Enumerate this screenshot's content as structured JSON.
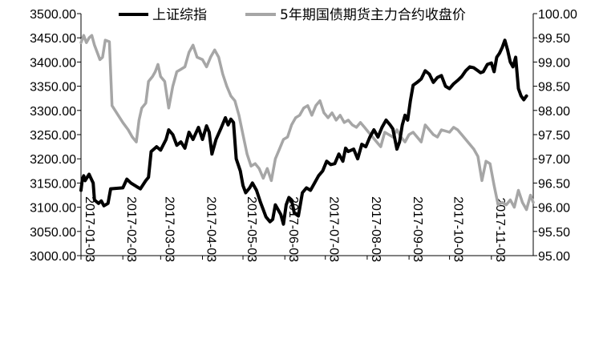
{
  "chart_data": {
    "type": "line",
    "title": "",
    "xlabel": "",
    "ylabel": "",
    "legend_position": "top-center",
    "x_tick_labels": [
      "2017-01-03",
      "2017-02-03",
      "2017-03-03",
      "2017-04-03",
      "2017-05-03",
      "2017-06-03",
      "2017-07-03",
      "2017-08-03",
      "2017-09-03",
      "2017-10-03",
      "2017-11-03"
    ],
    "x_range": [
      "2017-01-03",
      "2017-12-04"
    ],
    "left_axis": {
      "min": 3000,
      "max": 3500,
      "step": 50,
      "tick_labels": [
        "3000.00",
        "3050.00",
        "3100.00",
        "3150.00",
        "3200.00",
        "3250.00",
        "3300.00",
        "3350.00",
        "3400.00",
        "3450.00",
        "3500.00"
      ]
    },
    "right_axis": {
      "min": 95,
      "max": 100,
      "step": 0.5,
      "tick_labels": [
        "95.00",
        "95.50",
        "96.00",
        "96.50",
        "97.00",
        "97.50",
        "98.00",
        "98.50",
        "99.00",
        "99.50",
        "100.00"
      ]
    },
    "series": [
      {
        "name": "上证综指",
        "axis": "left",
        "color": "#000000",
        "points": [
          [
            "2017-01-03",
            3135
          ],
          [
            "2017-01-04",
            3158
          ],
          [
            "2017-01-05",
            3165
          ],
          [
            "2017-01-06",
            3155
          ],
          [
            "2017-01-09",
            3168
          ],
          [
            "2017-01-10",
            3162
          ],
          [
            "2017-01-12",
            3150
          ],
          [
            "2017-01-13",
            3115
          ],
          [
            "2017-01-16",
            3108
          ],
          [
            "2017-01-18",
            3113
          ],
          [
            "2017-01-20",
            3103
          ],
          [
            "2017-01-23",
            3108
          ],
          [
            "2017-01-25",
            3138
          ],
          [
            "2017-02-03",
            3140
          ],
          [
            "2017-02-06",
            3158
          ],
          [
            "2017-02-09",
            3150
          ],
          [
            "2017-02-13",
            3143
          ],
          [
            "2017-02-16",
            3138
          ],
          [
            "2017-02-20",
            3155
          ],
          [
            "2017-02-22",
            3162
          ],
          [
            "2017-02-24",
            3215
          ],
          [
            "2017-02-28",
            3225
          ],
          [
            "2017-03-03",
            3218
          ],
          [
            "2017-03-07",
            3240
          ],
          [
            "2017-03-09",
            3260
          ],
          [
            "2017-03-12",
            3250
          ],
          [
            "2017-03-15",
            3228
          ],
          [
            "2017-03-18",
            3235
          ],
          [
            "2017-03-21",
            3222
          ],
          [
            "2017-03-24",
            3255
          ],
          [
            "2017-03-27",
            3240
          ],
          [
            "2017-03-31",
            3265
          ],
          [
            "2017-04-03",
            3240
          ],
          [
            "2017-04-06",
            3268
          ],
          [
            "2017-04-08",
            3255
          ],
          [
            "2017-04-10",
            3210
          ],
          [
            "2017-04-13",
            3240
          ],
          [
            "2017-04-17",
            3265
          ],
          [
            "2017-04-20",
            3285
          ],
          [
            "2017-04-22",
            3270
          ],
          [
            "2017-04-24",
            3282
          ],
          [
            "2017-04-26",
            3275
          ],
          [
            "2017-04-28",
            3200
          ],
          [
            "2017-05-01",
            3175
          ],
          [
            "2017-05-03",
            3145
          ],
          [
            "2017-05-05",
            3130
          ],
          [
            "2017-05-08",
            3140
          ],
          [
            "2017-05-10",
            3150
          ],
          [
            "2017-05-13",
            3135
          ],
          [
            "2017-05-16",
            3110
          ],
          [
            "2017-05-18",
            3095
          ],
          [
            "2017-05-20",
            3080
          ],
          [
            "2017-05-23",
            3070
          ],
          [
            "2017-05-25",
            3075
          ],
          [
            "2017-05-27",
            3105
          ],
          [
            "2017-05-29",
            3095
          ],
          [
            "2017-05-31",
            3085
          ],
          [
            "2017-06-02",
            3065
          ],
          [
            "2017-06-04",
            3105
          ],
          [
            "2017-06-06",
            3120
          ],
          [
            "2017-06-08",
            3115
          ],
          [
            "2017-06-10",
            3088
          ],
          [
            "2017-06-13",
            3082
          ],
          [
            "2017-06-16",
            3130
          ],
          [
            "2017-06-19",
            3140
          ],
          [
            "2017-06-22",
            3135
          ],
          [
            "2017-06-25",
            3150
          ],
          [
            "2017-06-28",
            3165
          ],
          [
            "2017-07-01",
            3175
          ],
          [
            "2017-07-04",
            3195
          ],
          [
            "2017-07-07",
            3188
          ],
          [
            "2017-07-10",
            3190
          ],
          [
            "2017-07-13",
            3210
          ],
          [
            "2017-07-16",
            3195
          ],
          [
            "2017-07-18",
            3222
          ],
          [
            "2017-07-20",
            3215
          ],
          [
            "2017-07-24",
            3220
          ],
          [
            "2017-07-27",
            3200
          ],
          [
            "2017-07-30",
            3230
          ],
          [
            "2017-08-02",
            3225
          ],
          [
            "2017-08-05",
            3245
          ],
          [
            "2017-08-08",
            3260
          ],
          [
            "2017-08-11",
            3245
          ],
          [
            "2017-08-14",
            3265
          ],
          [
            "2017-08-17",
            3280
          ],
          [
            "2017-08-20",
            3270
          ],
          [
            "2017-08-22",
            3262
          ],
          [
            "2017-08-25",
            3220
          ],
          [
            "2017-08-27",
            3235
          ],
          [
            "2017-08-29",
            3270
          ],
          [
            "2017-08-31",
            3290
          ],
          [
            "2017-09-02",
            3280
          ],
          [
            "2017-09-04",
            3320
          ],
          [
            "2017-09-06",
            3352
          ],
          [
            "2017-09-09",
            3358
          ],
          [
            "2017-09-12",
            3365
          ],
          [
            "2017-09-15",
            3382
          ],
          [
            "2017-09-18",
            3375
          ],
          [
            "2017-09-21",
            3358
          ],
          [
            "2017-09-24",
            3368
          ],
          [
            "2017-09-27",
            3372
          ],
          [
            "2017-09-30",
            3350
          ],
          [
            "2017-10-03",
            3345
          ],
          [
            "2017-10-06",
            3355
          ],
          [
            "2017-10-09",
            3362
          ],
          [
            "2017-10-12",
            3370
          ],
          [
            "2017-10-15",
            3382
          ],
          [
            "2017-10-18",
            3390
          ],
          [
            "2017-10-21",
            3388
          ],
          [
            "2017-10-24",
            3382
          ],
          [
            "2017-10-26",
            3378
          ],
          [
            "2017-10-28",
            3380
          ],
          [
            "2017-10-31",
            3395
          ],
          [
            "2017-11-03",
            3398
          ],
          [
            "2017-11-05",
            3380
          ],
          [
            "2017-11-07",
            3410
          ],
          [
            "2017-11-09",
            3418
          ],
          [
            "2017-11-11",
            3430
          ],
          [
            "2017-11-13",
            3445
          ],
          [
            "2017-11-15",
            3425
          ],
          [
            "2017-11-17",
            3400
          ],
          [
            "2017-11-19",
            3390
          ],
          [
            "2017-11-21",
            3410
          ],
          [
            "2017-11-23",
            3345
          ],
          [
            "2017-11-25",
            3330
          ],
          [
            "2017-11-27",
            3322
          ],
          [
            "2017-11-29",
            3330
          ]
        ]
      },
      {
        "name": "5年期国债期货主力合约收盘价",
        "axis": "right",
        "color": "#a6a6a6",
        "points": [
          [
            "2017-01-03",
            99.4
          ],
          [
            "2017-01-05",
            99.55
          ],
          [
            "2017-01-07",
            99.4
          ],
          [
            "2017-01-09",
            99.5
          ],
          [
            "2017-01-11",
            99.55
          ],
          [
            "2017-01-13",
            99.35
          ],
          [
            "2017-01-15",
            99.2
          ],
          [
            "2017-01-17",
            99.05
          ],
          [
            "2017-01-19",
            99.1
          ],
          [
            "2017-01-21",
            99.45
          ],
          [
            "2017-01-24",
            99.42
          ],
          [
            "2017-01-26",
            98.1
          ],
          [
            "2017-02-03",
            97.75
          ],
          [
            "2017-02-07",
            97.6
          ],
          [
            "2017-02-10",
            97.45
          ],
          [
            "2017-02-13",
            97.35
          ],
          [
            "2017-02-15",
            97.8
          ],
          [
            "2017-02-17",
            98.05
          ],
          [
            "2017-02-20",
            98.15
          ],
          [
            "2017-02-22",
            98.6
          ],
          [
            "2017-02-25",
            98.7
          ],
          [
            "2017-02-27",
            98.8
          ],
          [
            "2017-03-01",
            98.95
          ],
          [
            "2017-03-03",
            98.7
          ],
          [
            "2017-03-06",
            98.6
          ],
          [
            "2017-03-09",
            98.05
          ],
          [
            "2017-03-12",
            98.5
          ],
          [
            "2017-03-15",
            98.8
          ],
          [
            "2017-03-18",
            98.85
          ],
          [
            "2017-03-21",
            98.9
          ],
          [
            "2017-03-24",
            99.2
          ],
          [
            "2017-03-27",
            99.35
          ],
          [
            "2017-03-30",
            99.1
          ],
          [
            "2017-04-03",
            99.05
          ],
          [
            "2017-04-06",
            98.9
          ],
          [
            "2017-04-09",
            99.1
          ],
          [
            "2017-04-12",
            99.25
          ],
          [
            "2017-04-15",
            99.1
          ],
          [
            "2017-04-18",
            98.75
          ],
          [
            "2017-04-21",
            98.5
          ],
          [
            "2017-04-24",
            98.3
          ],
          [
            "2017-04-27",
            98.2
          ],
          [
            "2017-04-30",
            97.9
          ],
          [
            "2017-05-03",
            97.5
          ],
          [
            "2017-05-06",
            97.1
          ],
          [
            "2017-05-09",
            96.85
          ],
          [
            "2017-05-12",
            96.9
          ],
          [
            "2017-05-15",
            96.8
          ],
          [
            "2017-05-18",
            96.6
          ],
          [
            "2017-05-21",
            96.8
          ],
          [
            "2017-05-24",
            96.55
          ],
          [
            "2017-05-27",
            97.0
          ],
          [
            "2017-05-30",
            97.2
          ],
          [
            "2017-06-02",
            97.4
          ],
          [
            "2017-06-05",
            97.45
          ],
          [
            "2017-06-08",
            97.7
          ],
          [
            "2017-06-11",
            97.85
          ],
          [
            "2017-06-14",
            97.9
          ],
          [
            "2017-06-17",
            98.05
          ],
          [
            "2017-06-20",
            98.1
          ],
          [
            "2017-06-23",
            97.9
          ],
          [
            "2017-06-26",
            98.1
          ],
          [
            "2017-06-29",
            98.2
          ],
          [
            "2017-07-02",
            97.95
          ],
          [
            "2017-07-05",
            97.85
          ],
          [
            "2017-07-08",
            97.95
          ],
          [
            "2017-07-11",
            97.8
          ],
          [
            "2017-07-14",
            97.9
          ],
          [
            "2017-07-17",
            97.75
          ],
          [
            "2017-07-20",
            97.8
          ],
          [
            "2017-07-23",
            97.7
          ],
          [
            "2017-07-26",
            97.65
          ],
          [
            "2017-07-29",
            97.75
          ],
          [
            "2017-08-01",
            97.65
          ],
          [
            "2017-08-04",
            97.55
          ],
          [
            "2017-08-07",
            97.45
          ],
          [
            "2017-08-10",
            97.35
          ],
          [
            "2017-08-13",
            97.25
          ],
          [
            "2017-08-16",
            97.55
          ],
          [
            "2017-08-19",
            97.5
          ],
          [
            "2017-08-22",
            97.45
          ],
          [
            "2017-08-25",
            97.6
          ],
          [
            "2017-08-28",
            97.45
          ],
          [
            "2017-08-31",
            97.35
          ],
          [
            "2017-09-03",
            97.5
          ],
          [
            "2017-09-06",
            97.55
          ],
          [
            "2017-09-09",
            97.45
          ],
          [
            "2017-09-12",
            97.35
          ],
          [
            "2017-09-15",
            97.7
          ],
          [
            "2017-09-18",
            97.6
          ],
          [
            "2017-09-21",
            97.5
          ],
          [
            "2017-09-24",
            97.45
          ],
          [
            "2017-09-27",
            97.6
          ],
          [
            "2017-10-03",
            97.55
          ],
          [
            "2017-10-06",
            97.65
          ],
          [
            "2017-10-09",
            97.6
          ],
          [
            "2017-10-12",
            97.5
          ],
          [
            "2017-10-15",
            97.4
          ],
          [
            "2017-10-18",
            97.3
          ],
          [
            "2017-10-21",
            97.2
          ],
          [
            "2017-10-24",
            97.05
          ],
          [
            "2017-10-27",
            96.55
          ],
          [
            "2017-10-30",
            96.95
          ],
          [
            "2017-11-02",
            96.9
          ],
          [
            "2017-11-05",
            96.45
          ],
          [
            "2017-11-08",
            96.05
          ],
          [
            "2017-11-11",
            96.1
          ],
          [
            "2017-11-14",
            96.05
          ],
          [
            "2017-11-17",
            96.15
          ],
          [
            "2017-11-20",
            96.0
          ],
          [
            "2017-11-23",
            96.35
          ],
          [
            "2017-11-26",
            96.1
          ],
          [
            "2017-11-29",
            95.95
          ],
          [
            "2017-12-02",
            96.25
          ],
          [
            "2017-12-04",
            96.1
          ]
        ]
      }
    ]
  }
}
